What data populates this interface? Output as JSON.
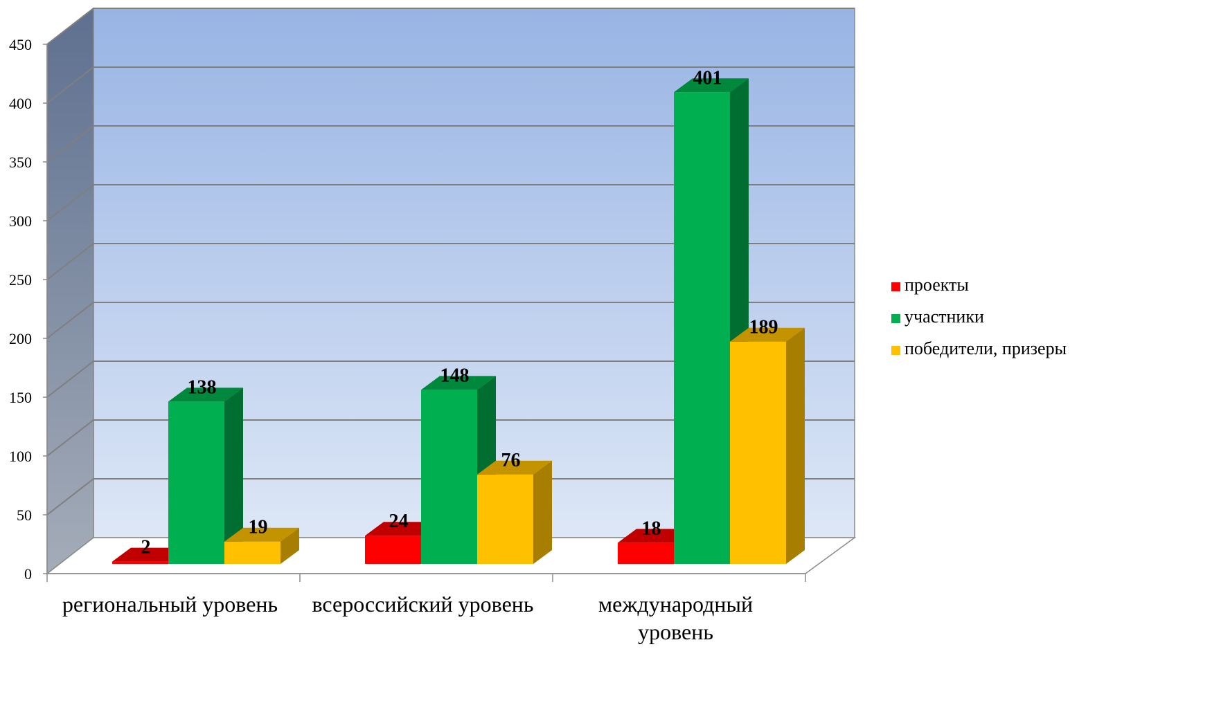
{
  "chart_data": {
    "type": "bar",
    "style": "3d-clustered-column",
    "categories": [
      [
        "региональный уровень"
      ],
      [
        "всероссийский уровень"
      ],
      [
        "международный",
        "уровень"
      ]
    ],
    "series": [
      {
        "name": "проекты",
        "values": [
          2,
          24,
          18
        ],
        "color": "#ff0000",
        "top_color": "#c00000",
        "side_color": "#b00000"
      },
      {
        "name": "участники",
        "values": [
          138,
          148,
          401
        ],
        "color": "#00b050",
        "top_color": "#00883c",
        "side_color": "#006e30"
      },
      {
        "name": "победители, призеры",
        "values": [
          19,
          76,
          189
        ],
        "color": "#ffc000",
        "top_color": "#c49300",
        "side_color": "#a87e00"
      }
    ],
    "y_ticks": [
      0,
      50,
      100,
      150,
      200,
      250,
      300,
      350,
      400,
      450
    ],
    "ylim": [
      0,
      450
    ],
    "grid": true,
    "legend_position": "right",
    "background": {
      "wall_top": "#98b4e4",
      "wall_bottom": "#dde7f6",
      "side_wall_top": "#5e7090",
      "side_wall_bottom": "#a4acb8"
    }
  }
}
